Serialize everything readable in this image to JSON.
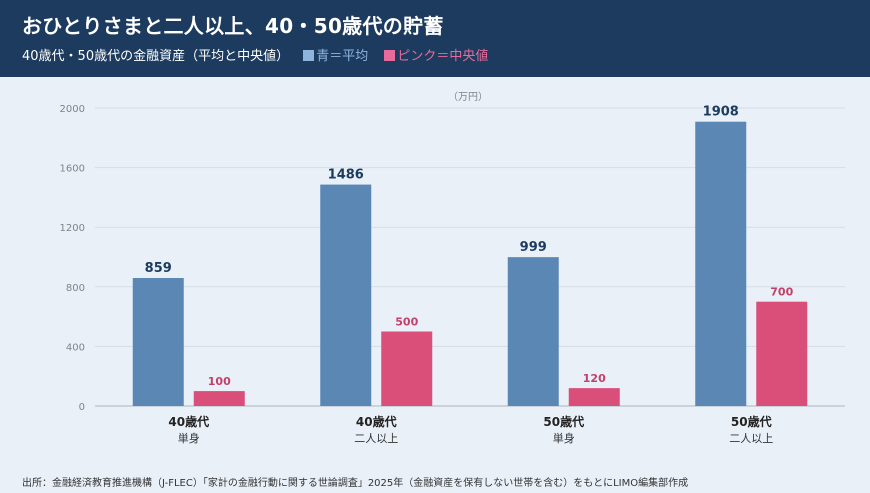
{
  "header": {
    "title": "おひとりさまと二人以上、40・50歳代の貯蓄",
    "subtitle": "40歳代・50歳代の金融資産（平均と中央値）",
    "legend_blue": "青＝平均",
    "legend_pink": "ピンク＝中央値"
  },
  "colors": {
    "mean": "#5b87b5",
    "median": "#d94f7a",
    "header_bg": "#1c3b5e"
  },
  "chart_data": {
    "type": "bar",
    "unit_label": "（万円）",
    "categories": [
      {
        "age": "40歳代",
        "household": "単身"
      },
      {
        "age": "40歳代",
        "household": "二人以上"
      },
      {
        "age": "50歳代",
        "household": "単身"
      },
      {
        "age": "50歳代",
        "household": "二人以上"
      }
    ],
    "series": [
      {
        "name": "青＝平均",
        "values": [
          859,
          1486,
          999,
          1908
        ]
      },
      {
        "name": "ピンク＝中央値",
        "values": [
          100,
          500,
          120,
          700
        ]
      }
    ],
    "ylim": [
      0,
      2000
    ],
    "yticks": [
      0,
      400,
      800,
      1200,
      1600,
      2000
    ],
    "grid": true
  },
  "footer": {
    "source": "出所：金融経済教育推進機構（J-FLEC）「家計の金融行動に関する世論調査」2025年（金融資産を保有しない世帯を含む）をもとにLIMO編集部作成"
  }
}
